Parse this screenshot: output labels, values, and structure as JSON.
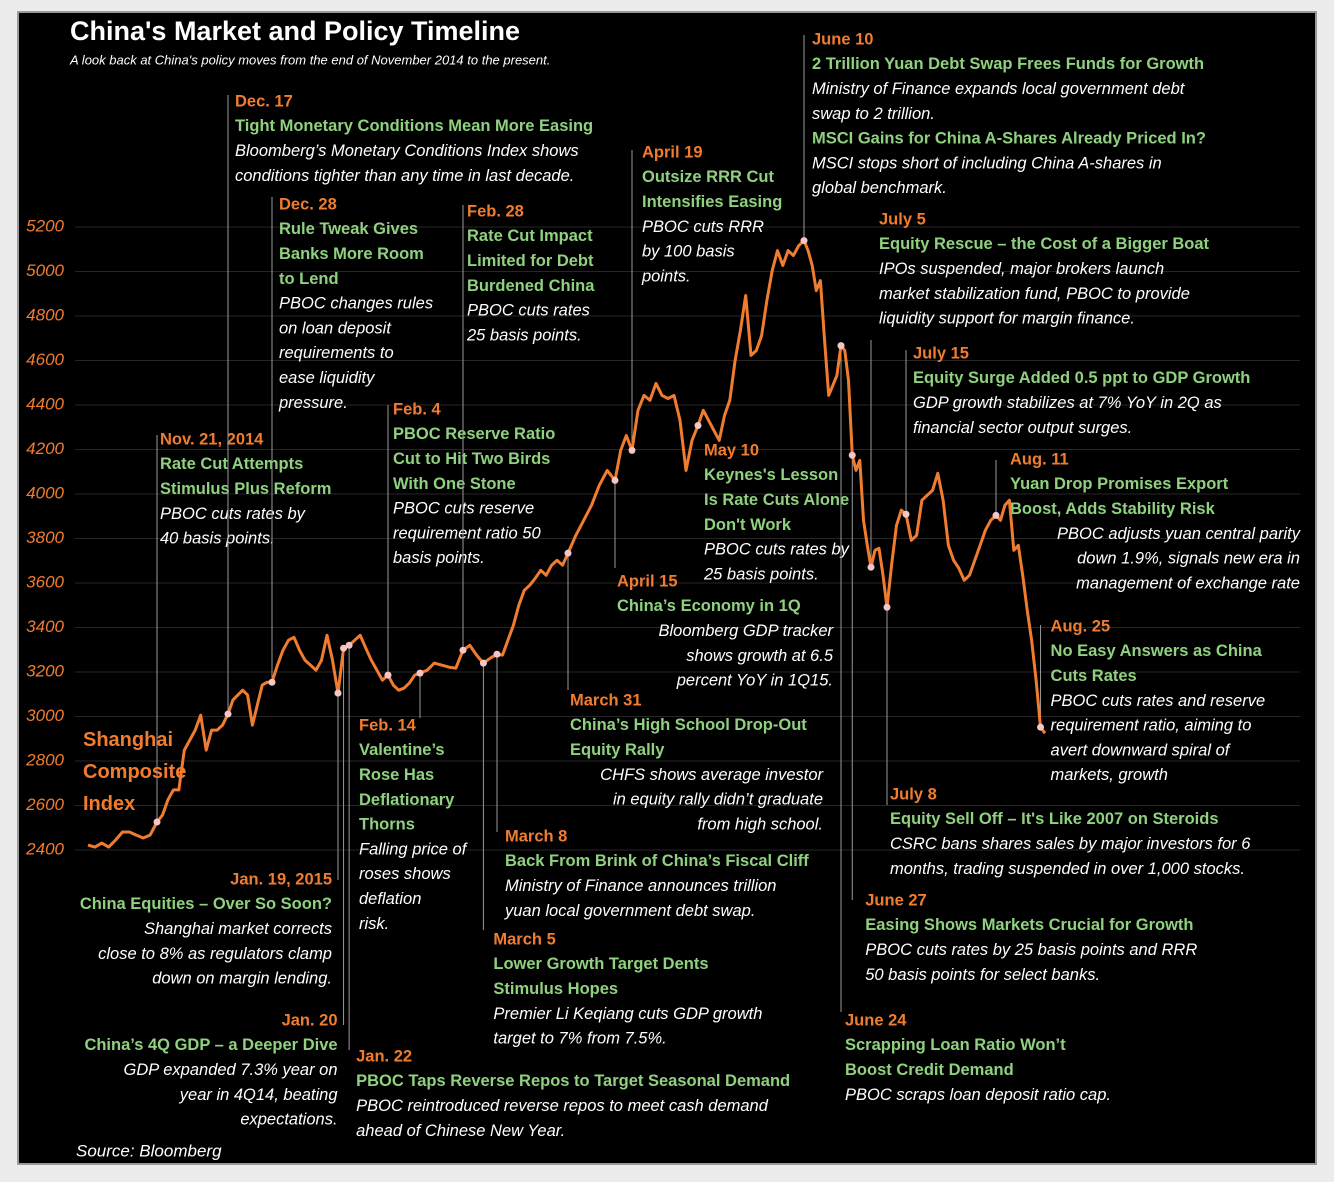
{
  "chart_data": {
    "type": "line",
    "title": "China's Market and Policy Timeline",
    "subtitle": "A look back at China's policy moves from the end of November 2014 to the present.",
    "source": "Source: Bloomberg",
    "series": [
      {
        "name": "Shanghai Composite Index",
        "color": "#f07c30",
        "values": [
          2422,
          2413,
          2431,
          2413,
          2445,
          2481,
          2481,
          2467,
          2454,
          2467,
          2526,
          2557,
          2625,
          2670,
          2670,
          2849,
          2894,
          2939,
          3006,
          2849,
          2939,
          2939,
          2961,
          3011,
          3074,
          3096,
          3118,
          3096,
          2961,
          3051,
          3141,
          3154,
          3154,
          3231,
          3298,
          3343,
          3356,
          3298,
          3253,
          3231,
          3208,
          3253,
          3365,
          3253,
          3105,
          3307,
          3320,
          3343,
          3365,
          3307,
          3253,
          3208,
          3163,
          3186,
          3141,
          3118,
          3127,
          3150,
          3186,
          3195,
          3208,
          3240,
          3231,
          3222,
          3217,
          3298,
          3320,
          3276,
          3240,
          3262,
          3280,
          3276,
          3343,
          3410,
          3500,
          3567,
          3590,
          3621,
          3657,
          3635,
          3680,
          3702,
          3680,
          3734,
          3814,
          3882,
          3949,
          4039,
          4106,
          4061,
          4196,
          4263,
          4196,
          4376,
          4443,
          4421,
          4497,
          4443,
          4429,
          4443,
          4331,
          4106,
          4241,
          4308,
          4376,
          4331,
          4286,
          4241,
          4353,
          4421,
          4600,
          4735,
          4892,
          4623,
          4645,
          4712,
          4870,
          5004,
          5094,
          5027,
          5094,
          5072,
          5116,
          5139,
          5094,
          5027,
          4914,
          4959,
          4690,
          4443,
          4488,
          4533,
          4667,
          4645,
          4510,
          4174,
          4106,
          4151,
          3882,
          3769,
          3671,
          3747,
          3756,
          3635,
          3491,
          3689,
          3859,
          3927,
          3909,
          3792,
          3814,
          3972,
          3994,
          4016,
          4093,
          3972,
          3769,
          3702,
          3666,
          3612,
          3635,
          3702,
          3769,
          3837,
          3882,
          3904,
          3882,
          3949,
          3972,
          3747,
          3769,
          3635,
          3478,
          3343,
          3163,
          2952,
          2925
        ]
      }
    ],
    "ylim": [
      2400,
      5200
    ],
    "yticks": [
      2400,
      2600,
      2800,
      3000,
      3200,
      3400,
      3600,
      3800,
      4000,
      4200,
      4400,
      4600,
      4800,
      5000,
      5200
    ],
    "grid": true,
    "annotations": [
      {
        "date": "Nov. 21, 2014",
        "blocks": [
          {
            "headline": [
              "Rate Cut Attempts",
              "Stimulus Plus Reform"
            ],
            "text": [
              "PBOC cuts rates by",
              "40 basis points."
            ]
          }
        ]
      },
      {
        "date": "Dec. 17",
        "blocks": [
          {
            "headline": [
              "Tight Monetary Conditions Mean More Easing"
            ],
            "text": [
              "Bloomberg’s Monetary Conditions Index shows",
              "conditions tighter than any time in last decade."
            ]
          }
        ]
      },
      {
        "date": "Dec. 28",
        "blocks": [
          {
            "headline": [
              "Rule Tweak Gives",
              "Banks More Room",
              "to Lend"
            ],
            "text": [
              "PBOC changes rules",
              "on loan deposit",
              "requirements to",
              "ease liquidity",
              "pressure."
            ]
          }
        ]
      },
      {
        "date": "Jan. 19, 2015",
        "blocks": [
          {
            "headline": [
              "China Equities – Over So Soon?"
            ],
            "text": [
              "Shanghai market corrects",
              "close to 8% as regulators clamp",
              "down on margin lending."
            ]
          }
        ]
      },
      {
        "date": "Jan. 20",
        "blocks": [
          {
            "headline": [
              "China’s 4Q GDP – a Deeper Dive"
            ],
            "text": [
              "GDP expanded 7.3% year on",
              "year in 4Q14, beating",
              "expectations."
            ]
          }
        ]
      },
      {
        "date": "Jan. 22",
        "blocks": [
          {
            "headline": [
              "PBOC Taps Reverse Repos to Target Seasonal Demand"
            ],
            "text": [
              "PBOC reintroduced reverse repos to meet cash demand",
              "ahead of Chinese New Year."
            ]
          }
        ]
      },
      {
        "date": "Feb. 4",
        "blocks": [
          {
            "headline": [
              "PBOC Reserve Ratio",
              "Cut to Hit Two Birds",
              "With One Stone"
            ],
            "text": [
              "PBOC cuts reserve",
              "requirement ratio 50",
              "basis points."
            ]
          }
        ]
      },
      {
        "date": "Feb. 14",
        "blocks": [
          {
            "headline": [
              "Valentine’s",
              "Rose Has",
              "Deflationary",
              "Thorns"
            ],
            "text": [
              "Falling price of",
              "roses shows",
              "deflation",
              "risk."
            ]
          }
        ]
      },
      {
        "date": "Feb. 28",
        "blocks": [
          {
            "headline": [
              "Rate Cut Impact",
              "Limited for Debt",
              "Burdened China"
            ],
            "text": [
              "PBOC cuts rates",
              "25 basis points."
            ]
          }
        ]
      },
      {
        "date": "March 5",
        "blocks": [
          {
            "headline": [
              "Lower Growth Target Dents",
              "Stimulus Hopes"
            ],
            "text": [
              "Premier Li Keqiang cuts GDP growth",
              "target to 7% from 7.5%."
            ]
          }
        ]
      },
      {
        "date": "March 8",
        "blocks": [
          {
            "headline": [
              "Back From Brink of China’s Fiscal Cliff"
            ],
            "text": [
              "Ministry of Finance announces trillion",
              "yuan local government debt swap."
            ]
          }
        ]
      },
      {
        "date": "March 31",
        "blocks": [
          {
            "headline": [
              "China’s High School Drop-Out",
              "Equity Rally"
            ],
            "text": [
              "CHFS shows average investor",
              "in equity rally didn’t graduate",
              "from high school."
            ]
          }
        ]
      },
      {
        "date": "April 15",
        "blocks": [
          {
            "headline": [
              "China’s Economy in 1Q"
            ],
            "text": [
              "Bloomberg GDP tracker",
              "shows growth at 6.5",
              "percent YoY in 1Q15."
            ]
          }
        ]
      },
      {
        "date": "April 19",
        "blocks": [
          {
            "headline": [
              "Outsize RRR Cut",
              "Intensifies Easing"
            ],
            "text": [
              "PBOC cuts RRR",
              "by 100 basis",
              "points."
            ]
          }
        ]
      },
      {
        "date": "May 10",
        "blocks": [
          {
            "headline": [
              "Keynes's Lesson",
              "Is Rate Cuts Alone",
              "Don't Work"
            ],
            "text": [
              "PBOC cuts rates by",
              "25 basis points."
            ]
          }
        ]
      },
      {
        "date": "June 10",
        "blocks": [
          {
            "headline": [
              "2 Trillion Yuan Debt Swap Frees Funds for Growth"
            ],
            "text": [
              "Ministry of Finance expands local government debt",
              "swap to 2 trillion."
            ]
          },
          {
            "headline": [
              "MSCI Gains for China A-Shares Already Priced In?"
            ],
            "text": [
              "MSCI stops short of including China A-shares in",
              "global benchmark."
            ]
          }
        ]
      },
      {
        "date": "June 24",
        "blocks": [
          {
            "headline": [
              "Scrapping Loan Ratio Won’t",
              "Boost Credit Demand"
            ],
            "text": [
              "PBOC scraps loan deposit ratio cap."
            ]
          }
        ]
      },
      {
        "date": "June 27",
        "blocks": [
          {
            "headline": [
              "Easing Shows Markets Crucial for Growth"
            ],
            "text": [
              "PBOC cuts rates by 25 basis points and RRR",
              "50 basis points for select banks."
            ]
          }
        ]
      },
      {
        "date": "July 5",
        "blocks": [
          {
            "headline": [
              "Equity Rescue – the Cost of a Bigger Boat"
            ],
            "text": [
              "IPOs suspended, major brokers launch",
              "market stabilization fund, PBOC to provide",
              "liquidity support for margin finance."
            ]
          }
        ]
      },
      {
        "date": "July 8",
        "blocks": [
          {
            "headline": [
              "Equity Sell Off  – It's Like 2007 on Steroids"
            ],
            "text": [
              "CSRC bans shares sales by major investors for 6",
              "months, trading suspended in over 1,000 stocks."
            ]
          }
        ]
      },
      {
        "date": "July 15",
        "blocks": [
          {
            "headline": [
              "Equity Surge Added 0.5 ppt to GDP Growth"
            ],
            "text": [
              "GDP growth stabilizes at 7% YoY in 2Q as",
              "financial sector output surges."
            ]
          }
        ]
      },
      {
        "date": "Aug. 11",
        "blocks": [
          {
            "headline": [
              "Yuan Drop Promises Export",
              "Boost, Adds Stability Risk"
            ],
            "text": [
              "PBOC adjusts yuan central parity",
              "down 1.9%, signals new era in",
              "management of exchange rate"
            ]
          }
        ]
      },
      {
        "date": "Aug. 25",
        "blocks": [
          {
            "headline": [
              "No Easy Answers as China",
              "Cuts Rates"
            ],
            "text": [
              "PBOC cuts rates and reserve",
              "requirement ratio, aiming to",
              "avert downward spiral of",
              "markets, growth"
            ]
          }
        ]
      }
    ]
  }
}
